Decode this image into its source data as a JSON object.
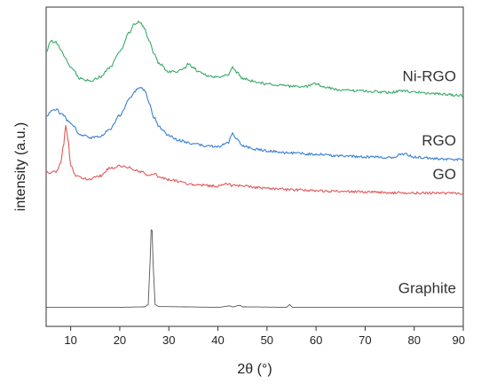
{
  "chart_data": {
    "type": "line",
    "title": "",
    "xlabel": "2θ (°)",
    "ylabel": "intensity (a.u.)",
    "xlim": [
      5,
      90
    ],
    "xticks": [
      10,
      20,
      30,
      40,
      50,
      60,
      70,
      80,
      90
    ],
    "yticks_shown": false,
    "grid": false,
    "legend": "labels placed beside each curve on the right",
    "series": [
      {
        "name": "Ni-RGO",
        "color": "#3aaa6a",
        "points": [
          [
            5,
            0.862
          ],
          [
            6,
            0.893
          ],
          [
            7,
            0.889
          ],
          [
            8,
            0.867
          ],
          [
            9,
            0.836
          ],
          [
            10,
            0.811
          ],
          [
            12,
            0.777
          ],
          [
            14,
            0.768
          ],
          [
            16,
            0.781
          ],
          [
            18,
            0.811
          ],
          [
            20,
            0.861
          ],
          [
            22,
            0.922
          ],
          [
            23,
            0.948
          ],
          [
            24,
            0.955
          ],
          [
            25,
            0.935
          ],
          [
            26,
            0.895
          ],
          [
            27,
            0.852
          ],
          [
            28,
            0.824
          ],
          [
            30,
            0.799
          ],
          [
            32,
            0.799
          ],
          [
            33,
            0.807
          ],
          [
            34,
            0.822
          ],
          [
            35,
            0.812
          ],
          [
            36,
            0.799
          ],
          [
            38,
            0.785
          ],
          [
            40,
            0.781
          ],
          [
            42,
            0.788
          ],
          [
            43,
            0.81
          ],
          [
            44,
            0.793
          ],
          [
            45,
            0.776
          ],
          [
            48,
            0.766
          ],
          [
            50,
            0.759
          ],
          [
            55,
            0.752
          ],
          [
            58,
            0.751
          ],
          [
            60,
            0.76
          ],
          [
            62,
            0.747
          ],
          [
            65,
            0.741
          ],
          [
            70,
            0.737
          ],
          [
            75,
            0.733
          ],
          [
            78,
            0.739
          ],
          [
            80,
            0.733
          ],
          [
            85,
            0.728
          ],
          [
            90,
            0.723
          ]
        ]
      },
      {
        "name": "RGO",
        "color": "#3a7fd0",
        "points": [
          [
            5,
            0.655
          ],
          [
            6,
            0.675
          ],
          [
            7,
            0.68
          ],
          [
            8,
            0.667
          ],
          [
            10,
            0.636
          ],
          [
            12,
            0.601
          ],
          [
            14,
            0.59
          ],
          [
            16,
            0.596
          ],
          [
            18,
            0.618
          ],
          [
            20,
            0.661
          ],
          [
            22,
            0.713
          ],
          [
            23,
            0.735
          ],
          [
            24,
            0.749
          ],
          [
            25,
            0.74
          ],
          [
            26,
            0.701
          ],
          [
            27,
            0.655
          ],
          [
            28,
            0.624
          ],
          [
            30,
            0.598
          ],
          [
            32,
            0.583
          ],
          [
            35,
            0.571
          ],
          [
            38,
            0.565
          ],
          [
            40,
            0.563
          ],
          [
            42,
            0.574
          ],
          [
            43,
            0.604
          ],
          [
            44,
            0.585
          ],
          [
            45,
            0.565
          ],
          [
            48,
            0.554
          ],
          [
            50,
            0.55
          ],
          [
            55,
            0.543
          ],
          [
            60,
            0.539
          ],
          [
            65,
            0.534
          ],
          [
            70,
            0.531
          ],
          [
            75,
            0.529
          ],
          [
            78,
            0.54
          ],
          [
            80,
            0.53
          ],
          [
            85,
            0.525
          ],
          [
            90,
            0.522
          ]
        ]
      },
      {
        "name": "GO",
        "color": "#e05a5a",
        "points": [
          [
            5,
            0.482
          ],
          [
            6,
            0.482
          ],
          [
            7,
            0.485
          ],
          [
            8,
            0.51
          ],
          [
            8.5,
            0.566
          ],
          [
            9,
            0.63
          ],
          [
            9.5,
            0.58
          ],
          [
            10,
            0.504
          ],
          [
            11,
            0.473
          ],
          [
            12,
            0.465
          ],
          [
            14,
            0.462
          ],
          [
            16,
            0.471
          ],
          [
            18,
            0.496
          ],
          [
            20,
            0.502
          ],
          [
            22,
            0.497
          ],
          [
            24,
            0.485
          ],
          [
            26,
            0.475
          ],
          [
            27,
            0.479
          ],
          [
            28,
            0.469
          ],
          [
            30,
            0.459
          ],
          [
            35,
            0.444
          ],
          [
            40,
            0.439
          ],
          [
            42,
            0.446
          ],
          [
            43,
            0.441
          ],
          [
            45,
            0.44
          ],
          [
            48,
            0.435
          ],
          [
            50,
            0.432
          ],
          [
            55,
            0.428
          ],
          [
            60,
            0.425
          ],
          [
            65,
            0.423
          ],
          [
            70,
            0.421
          ],
          [
            75,
            0.419
          ],
          [
            80,
            0.418
          ],
          [
            85,
            0.417
          ],
          [
            90,
            0.416
          ]
        ]
      },
      {
        "name": "Graphite",
        "color": "#555555",
        "points": [
          [
            5,
            0.06
          ],
          [
            20,
            0.06
          ],
          [
            25,
            0.061
          ],
          [
            25.8,
            0.068
          ],
          [
            26.2,
            0.21
          ],
          [
            26.5,
            0.335
          ],
          [
            26.8,
            0.2
          ],
          [
            27.2,
            0.068
          ],
          [
            28,
            0.062
          ],
          [
            40,
            0.06
          ],
          [
            42.5,
            0.064
          ],
          [
            43,
            0.061
          ],
          [
            44.5,
            0.066
          ],
          [
            45,
            0.061
          ],
          [
            54,
            0.06
          ],
          [
            54.6,
            0.068
          ],
          [
            55.2,
            0.06
          ],
          [
            70,
            0.06
          ],
          [
            90,
            0.06
          ]
        ]
      }
    ]
  }
}
